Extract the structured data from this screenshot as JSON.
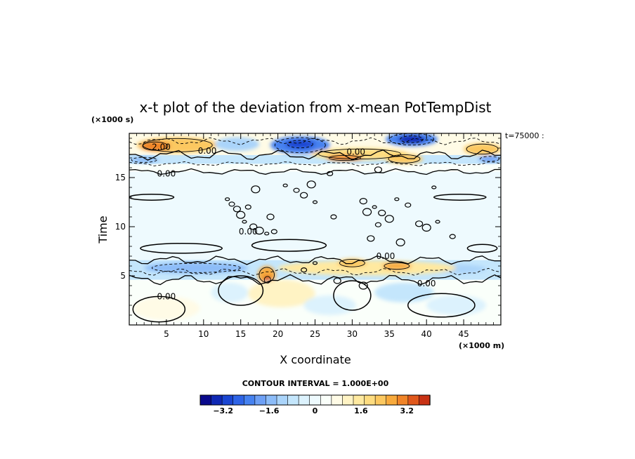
{
  "chart_data": {
    "type": "heatmap",
    "title": "x-t plot of the deviation from x-mean PotTempDist",
    "xlabel": "X coordinate",
    "ylabel": "Time",
    "x_unit": "(×1000 m)",
    "y_unit": "(×1000 s)",
    "corner_label": "t=75000 :",
    "xlim": [
      0,
      50
    ],
    "ylim": [
      0,
      19.5
    ],
    "x_ticks": [
      {
        "value": 5,
        "label": "5"
      },
      {
        "value": 10,
        "label": "10"
      },
      {
        "value": 15,
        "label": "15"
      },
      {
        "value": 20,
        "label": "20"
      },
      {
        "value": 25,
        "label": "25"
      },
      {
        "value": 30,
        "label": "30"
      },
      {
        "value": 35,
        "label": "35"
      },
      {
        "value": 40,
        "label": "40"
      },
      {
        "value": 45,
        "label": "45"
      }
    ],
    "y_ticks": [
      {
        "value": 5,
        "label": "5"
      },
      {
        "value": 10,
        "label": "10"
      },
      {
        "value": 15,
        "label": "15"
      }
    ],
    "contour_interval_text": "CONTOUR INTERVAL = 1.000E+00",
    "contour_labels": [
      {
        "text": "2.00",
        "x": 4.3,
        "y": 18.1
      },
      {
        "text": "0.00",
        "x": 10.5,
        "y": 17.7
      },
      {
        "text": "0.00",
        "x": 30.5,
        "y": 17.6
      },
      {
        "text": "0.00",
        "x": 5.0,
        "y": 15.4
      },
      {
        "text": "0.00",
        "x": 16.0,
        "y": 9.5
      },
      {
        "text": "0.00",
        "x": 34.5,
        "y": 7.0
      },
      {
        "text": "0.00",
        "x": 40.0,
        "y": 4.2
      },
      {
        "text": "0.00",
        "x": 5.0,
        "y": 2.9
      }
    ],
    "colorbar": {
      "range": [
        -4.0,
        4.0
      ],
      "step": 0.4,
      "tick_labels": [
        {
          "value": -3.2,
          "label": "−3.2"
        },
        {
          "value": -1.6,
          "label": "−1.6"
        },
        {
          "value": 0,
          "label": "0"
        },
        {
          "value": 1.6,
          "label": "1.6"
        },
        {
          "value": 3.2,
          "label": "3.2"
        }
      ],
      "colors": [
        "#0a0a8c",
        "#0f28b4",
        "#1a46d2",
        "#2e64e6",
        "#4682f0",
        "#6ea0f5",
        "#8cbcf8",
        "#aad4fa",
        "#c4e6fc",
        "#dcf2fd",
        "#eefafe",
        "#fafffa",
        "#fffbe6",
        "#fff3c4",
        "#ffe9a0",
        "#fedc80",
        "#fcc860",
        "#f8aa3c",
        "#f08428",
        "#e0581c",
        "#c83214"
      ]
    },
    "bands": [
      {
        "t0": 0.0,
        "t1": 4.6,
        "level": 0.4,
        "note": "pale yellow region with light blue patches"
      },
      {
        "t0": 4.6,
        "t1": 6.6,
        "level": -0.8,
        "note": "light blue band"
      },
      {
        "t0": 6.6,
        "t1": 15.6,
        "level": -0.2,
        "note": "very pale cyan region"
      },
      {
        "t0": 15.6,
        "t1": 16.4,
        "level": 0.2,
        "note": "cream band"
      },
      {
        "t0": 16.4,
        "t1": 17.3,
        "level": -1.0,
        "note": "blue band"
      },
      {
        "t0": 17.3,
        "t1": 19.5,
        "level": 0.8,
        "note": "alternating warm/cold cells"
      }
    ],
    "blobs": [
      {
        "x": 6.5,
        "y": 18.3,
        "rx": 5.5,
        "ry": 0.8,
        "level": 2.4
      },
      {
        "x": 3.5,
        "y": 18.2,
        "rx": 2.0,
        "ry": 0.5,
        "level": 3.2
      },
      {
        "x": 14.5,
        "y": 18.4,
        "rx": 3.0,
        "ry": 0.7,
        "level": -1.2
      },
      {
        "x": 23.0,
        "y": 18.3,
        "rx": 4.0,
        "ry": 0.9,
        "level": -2.4
      },
      {
        "x": 23.0,
        "y": 18.4,
        "rx": 2.0,
        "ry": 0.45,
        "level": -3.2
      },
      {
        "x": 31.0,
        "y": 17.4,
        "rx": 6.5,
        "ry": 0.6,
        "level": 1.8
      },
      {
        "x": 29.0,
        "y": 17.0,
        "rx": 2.5,
        "ry": 0.3,
        "level": 3.0
      },
      {
        "x": 38.0,
        "y": 18.9,
        "rx": 3.5,
        "ry": 0.7,
        "level": -2.6
      },
      {
        "x": 38.0,
        "y": 18.9,
        "rx": 1.8,
        "ry": 0.4,
        "level": -3.6
      },
      {
        "x": 37.0,
        "y": 16.9,
        "rx": 2.5,
        "ry": 0.5,
        "level": 2.4
      },
      {
        "x": 47.5,
        "y": 17.9,
        "rx": 2.5,
        "ry": 0.6,
        "level": 2.2
      },
      {
        "x": 2.0,
        "y": 16.8,
        "rx": 2.0,
        "ry": 0.3,
        "level": -1.6
      },
      {
        "x": 48.5,
        "y": 16.9,
        "rx": 1.5,
        "ry": 0.3,
        "level": -2.0
      },
      {
        "x": 9.0,
        "y": 5.8,
        "rx": 7.0,
        "ry": 0.55,
        "level": -1.6
      },
      {
        "x": 44.0,
        "y": 5.7,
        "rx": 4.0,
        "ry": 0.45,
        "level": -1.2
      },
      {
        "x": 32.0,
        "y": 5.8,
        "rx": 12.0,
        "ry": 0.75,
        "level": 1.4
      },
      {
        "x": 36.0,
        "y": 6.0,
        "rx": 2.0,
        "ry": 0.4,
        "level": 2.8
      },
      {
        "x": 30.0,
        "y": 6.3,
        "rx": 2.0,
        "ry": 0.45,
        "level": 2.2
      },
      {
        "x": 18.5,
        "y": 5.1,
        "rx": 1.2,
        "ry": 0.9,
        "level": 2.8
      },
      {
        "x": 18.6,
        "y": 4.6,
        "rx": 0.5,
        "ry": 0.4,
        "level": 4.0
      },
      {
        "x": 20.5,
        "y": 3.2,
        "rx": 4.5,
        "ry": 1.4,
        "level": 1.0
      },
      {
        "x": 13.5,
        "y": 3.3,
        "rx": 2.5,
        "ry": 1.0,
        "level": -0.6
      },
      {
        "x": 37.0,
        "y": 3.3,
        "rx": 4.0,
        "ry": 1.0,
        "level": -0.8
      },
      {
        "x": 27.0,
        "y": 2.0,
        "rx": 3.5,
        "ry": 1.0,
        "level": -0.6
      },
      {
        "x": 44.0,
        "y": 2.0,
        "rx": 4.0,
        "ry": 1.0,
        "level": -0.5
      },
      {
        "x": 5.0,
        "y": 1.7,
        "rx": 4.5,
        "ry": 1.2,
        "level": 0.8
      }
    ],
    "zero_contours": [
      {
        "x": 7.0,
        "y": 7.8,
        "rx": 5.5,
        "ry": 0.5
      },
      {
        "x": 21.5,
        "y": 8.1,
        "rx": 5.0,
        "ry": 0.6
      },
      {
        "x": 47.5,
        "y": 7.8,
        "rx": 2.0,
        "ry": 0.4
      },
      {
        "x": 3.0,
        "y": 13.0,
        "rx": 3.0,
        "ry": 0.3
      },
      {
        "x": 44.5,
        "y": 13.0,
        "rx": 3.5,
        "ry": 0.3
      },
      {
        "x": 30.0,
        "y": 3.0,
        "rx": 2.5,
        "ry": 1.5
      },
      {
        "x": 42.0,
        "y": 2.0,
        "rx": 4.5,
        "ry": 1.2
      },
      {
        "x": 15.0,
        "y": 3.5,
        "rx": 3.0,
        "ry": 1.5
      },
      {
        "x": 4.0,
        "y": 1.6,
        "rx": 3.5,
        "ry": 1.3
      }
    ],
    "small_features": [
      {
        "x": 13.2,
        "y": 12.8
      },
      {
        "x": 13.8,
        "y": 12.3
      },
      {
        "x": 14.5,
        "y": 11.8
      },
      {
        "x": 15.0,
        "y": 11.2
      },
      {
        "x": 15.5,
        "y": 10.5
      },
      {
        "x": 16.0,
        "y": 12.0
      },
      {
        "x": 16.7,
        "y": 10.0
      },
      {
        "x": 17.5,
        "y": 9.6
      },
      {
        "x": 18.5,
        "y": 9.3
      },
      {
        "x": 19.5,
        "y": 9.5
      },
      {
        "x": 19.0,
        "y": 11.0
      },
      {
        "x": 17.0,
        "y": 13.8
      },
      {
        "x": 21.0,
        "y": 14.2
      },
      {
        "x": 22.5,
        "y": 13.7
      },
      {
        "x": 23.5,
        "y": 13.2
      },
      {
        "x": 24.5,
        "y": 14.3
      },
      {
        "x": 25.0,
        "y": 12.5
      },
      {
        "x": 27.5,
        "y": 11.0
      },
      {
        "x": 31.5,
        "y": 12.6
      },
      {
        "x": 32.0,
        "y": 11.5
      },
      {
        "x": 33.0,
        "y": 12.0
      },
      {
        "x": 33.5,
        "y": 10.2
      },
      {
        "x": 34.0,
        "y": 11.4
      },
      {
        "x": 35.0,
        "y": 10.8
      },
      {
        "x": 36.0,
        "y": 12.8
      },
      {
        "x": 37.5,
        "y": 12.2
      },
      {
        "x": 39.0,
        "y": 10.3
      },
      {
        "x": 40.0,
        "y": 9.9
      },
      {
        "x": 41.5,
        "y": 10.5
      },
      {
        "x": 43.5,
        "y": 9.0
      },
      {
        "x": 32.5,
        "y": 8.8
      },
      {
        "x": 36.5,
        "y": 8.4
      },
      {
        "x": 25.0,
        "y": 6.3
      },
      {
        "x": 23.5,
        "y": 5.6
      },
      {
        "x": 28.0,
        "y": 4.5
      },
      {
        "x": 31.5,
        "y": 4.0
      },
      {
        "x": 41.0,
        "y": 14.0
      },
      {
        "x": 27.0,
        "y": 15.4
      },
      {
        "x": 33.5,
        "y": 15.8
      }
    ]
  }
}
